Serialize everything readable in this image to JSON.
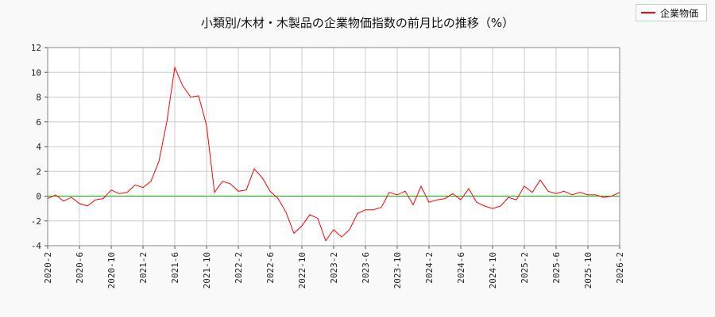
{
  "chart_data": {
    "type": "line",
    "title": "小類別/木材・木製品の企業物価指数の前月比の推移（%）",
    "xlabel": "",
    "ylabel": "",
    "ylim": [
      -4,
      12
    ],
    "yticks": [
      -4,
      -2,
      0,
      2,
      4,
      6,
      8,
      10,
      12
    ],
    "xticks": [
      "2020-2",
      "2020-6",
      "2020-10",
      "2021-2",
      "2021-6",
      "2021-10",
      "2022-2",
      "2022-6",
      "2022-10",
      "2023-2",
      "2023-6",
      "2023-10",
      "2024-2",
      "2024-6",
      "2024-10",
      "2025-2",
      "2025-6",
      "2025-10",
      "2026-2"
    ],
    "grid": true,
    "legend_position": "top-right",
    "reference_line": {
      "y": 0,
      "color": "#00c000"
    },
    "series": [
      {
        "name": "企業物価",
        "color": "#ff0000",
        "x": [
          "2020-2",
          "2020-3",
          "2020-4",
          "2020-5",
          "2020-6",
          "2020-7",
          "2020-8",
          "2020-9",
          "2020-10",
          "2020-11",
          "2020-12",
          "2021-1",
          "2021-2",
          "2021-3",
          "2021-4",
          "2021-5",
          "2021-6",
          "2021-7",
          "2021-8",
          "2021-9",
          "2021-10",
          "2021-11",
          "2021-12",
          "2022-1",
          "2022-2",
          "2022-3",
          "2022-4",
          "2022-5",
          "2022-6",
          "2022-7",
          "2022-8",
          "2022-9",
          "2022-10",
          "2022-11",
          "2022-12",
          "2023-1",
          "2023-2",
          "2023-3",
          "2023-4",
          "2023-5",
          "2023-6",
          "2023-7",
          "2023-8",
          "2023-9",
          "2023-10",
          "2023-11",
          "2023-12",
          "2024-1",
          "2024-2",
          "2024-3",
          "2024-4",
          "2024-5",
          "2024-6",
          "2024-7",
          "2024-8",
          "2024-9",
          "2024-10",
          "2024-11",
          "2024-12",
          "2025-1",
          "2025-2",
          "2025-3",
          "2025-4",
          "2025-5",
          "2025-6",
          "2025-7",
          "2025-8",
          "2025-9",
          "2025-10",
          "2025-11",
          "2025-12",
          "2026-1",
          "2026-2"
        ],
        "values": [
          -0.2,
          0.1,
          -0.4,
          -0.1,
          -0.6,
          -0.8,
          -0.3,
          -0.2,
          0.5,
          0.2,
          0.3,
          0.9,
          0.7,
          1.2,
          2.8,
          6.0,
          10.4,
          8.9,
          8.0,
          8.1,
          5.7,
          0.3,
          1.2,
          1.0,
          0.4,
          0.5,
          2.2,
          1.5,
          0.4,
          -0.2,
          -1.3,
          -3.0,
          -2.4,
          -1.5,
          -1.8,
          -3.6,
          -2.7,
          -3.3,
          -2.7,
          -1.4,
          -1.1,
          -1.1,
          -0.9,
          0.3,
          0.1,
          0.4,
          -0.7,
          0.8,
          -0.5,
          -0.3,
          -0.2,
          0.2,
          -0.3,
          0.6,
          -0.5,
          -0.8,
          -1.0,
          -0.8,
          -0.1,
          -0.3,
          0.8,
          0.3,
          1.3,
          0.4,
          0.2,
          0.4,
          0.1,
          0.3,
          0.1,
          0.1,
          -0.1,
          0.0,
          0.3
        ]
      }
    ]
  }
}
